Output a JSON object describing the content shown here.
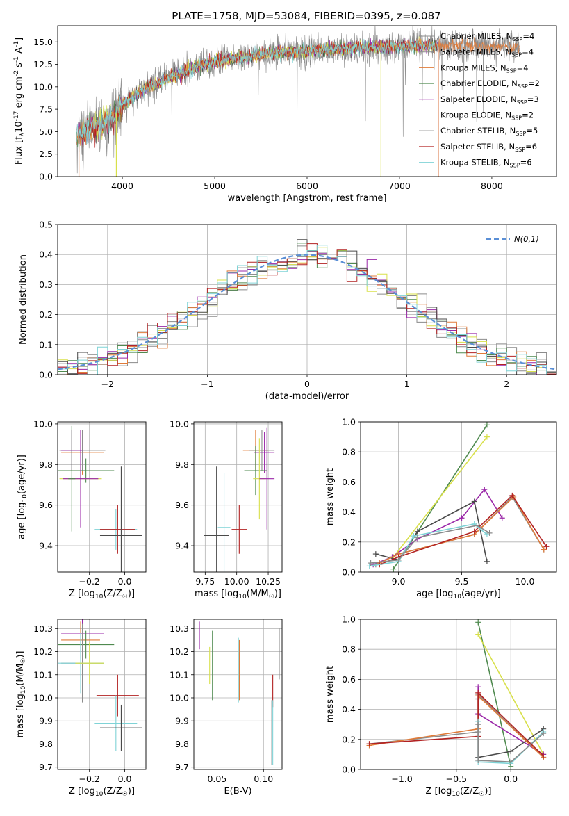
{
  "figure_title": "PLATE=1758, MJD=53084, FIBERID=0395, z=0.087",
  "colors": [
    "#8c8c8c",
    "#8a8a8a",
    "#e07b39",
    "#4f8a4f",
    "#9a27a8",
    "#d8e04a",
    "#4a4a4a",
    "#b22222",
    "#7fd3d6"
  ],
  "legend_labels": [
    "Chabrier MILES, N$_{SSP}$=4",
    "Salpeter MILES, N$_{SSP}$=4",
    "Kroupa MILES, N$_{SSP}$=4",
    "Chabrier ELODIE, N$_{SSP}$=2",
    "Salpeter ELODIE, N$_{SSP}$=3",
    "Kroupa ELODIE, N$_{SSP}$=2",
    "Chabrier STELIB, N$_{SSP}$=5",
    "Salpeter STELIB, N$_{SSP}$=6",
    "Kroupa STELIB, N$_{SSP}$=6"
  ],
  "chart_data": [
    {
      "id": "spectrum",
      "type": "line",
      "xlabel": "wavelength [Angstrom, rest frame]",
      "ylabel": "Flux [f$_\\lambda$10$^{-17}$ erg cm$^{-2}$ s$^{-1}$ A$^{-1}$]",
      "xlim": [
        3300,
        8700
      ],
      "ylim": [
        0,
        16.8
      ],
      "xticks": [
        4000,
        5000,
        6000,
        7000,
        8000
      ],
      "yticks": [
        0.0,
        2.5,
        5.0,
        7.5,
        10.0,
        12.5,
        15.0
      ],
      "data_range": [
        3500,
        8300
      ],
      "continuum": [
        [
          3500,
          4.5
        ],
        [
          3700,
          5.5
        ],
        [
          3900,
          6.5
        ],
        [
          4000,
          8.0
        ],
        [
          4200,
          9.5
        ],
        [
          4500,
          11.0
        ],
        [
          4800,
          12.2
        ],
        [
          5000,
          12.8
        ],
        [
          5300,
          13.3
        ],
        [
          5600,
          13.7
        ],
        [
          6000,
          14.0
        ],
        [
          6500,
          14.3
        ],
        [
          7000,
          14.5
        ],
        [
          7500,
          14.6
        ],
        [
          8000,
          14.5
        ],
        [
          8300,
          14.4
        ]
      ],
      "grid": false,
      "legend_placement": "right"
    },
    {
      "id": "residuals",
      "type": "histogram",
      "xlabel": "(data-model)/error",
      "ylabel": "Normed distribution",
      "xlim": [
        -2.5,
        2.5
      ],
      "ylim": [
        0,
        0.5
      ],
      "xticks": [
        -2,
        -1,
        0,
        1,
        2
      ],
      "yticks": [
        0.0,
        0.1,
        0.2,
        0.3,
        0.4,
        0.5
      ],
      "bin_width": 0.1,
      "normal_curve_label": "$\\mathcal{N}(0,1)$",
      "normal_curve_color": "#5a8fd6",
      "grid": true,
      "legend_placement": "top-right"
    },
    {
      "id": "age_vs_Z",
      "type": "errorbar",
      "xlabel": "Z [log$_{10}$(Z/Z$_\\odot$)]",
      "ylabel": "age  [log$_{10}$(age/yr)]",
      "xlim": [
        -0.38,
        0.12
      ],
      "ylim": [
        9.27,
        10.01
      ],
      "xticks": [
        -0.2,
        0.0
      ],
      "yticks": [
        9.4,
        9.6,
        9.8,
        10.0
      ],
      "points": [
        {
          "x": -0.24,
          "xerr": 0.12,
          "y": 9.86,
          "yerr": 0.11,
          "c": 2
        },
        {
          "x": -0.24,
          "xerr": 0.13,
          "y": 9.87,
          "yerr": 0.1,
          "c": 0
        },
        {
          "x": -0.3,
          "xerr": 0.06,
          "y": 9.87,
          "yerr": 0.1,
          "c": 4
        },
        {
          "x": -0.22,
          "xerr": 0.16,
          "y": 9.77,
          "yerr": 0.06,
          "c": 3
        },
        {
          "x": -0.25,
          "xerr": 0.12,
          "y": 9.73,
          "yerr": 0.07,
          "c": 5
        },
        {
          "x": -0.25,
          "xerr": 0.1,
          "y": 9.73,
          "yerr": 0.24,
          "c": 4
        },
        {
          "x": -0.3,
          "xerr": 0.02,
          "y": 9.73,
          "yerr": 0.26,
          "c": 3
        },
        {
          "x": -0.05,
          "xerr": 0.12,
          "y": 9.48,
          "yerr": 0.1,
          "c": 8
        },
        {
          "x": -0.04,
          "xerr": 0.1,
          "y": 9.48,
          "yerr": 0.12,
          "c": 7
        },
        {
          "x": -0.02,
          "xerr": 0.12,
          "y": 9.45,
          "yerr": 0.34,
          "c": 6
        }
      ]
    },
    {
      "id": "age_vs_mass",
      "type": "errorbar",
      "xlabel": "mass [log$_{10}$(M/M$_\\odot$)]",
      "ylabel": "",
      "xlim": [
        9.66,
        10.36
      ],
      "ylim": [
        9.27,
        10.01
      ],
      "xticks": [
        9.75,
        10.0,
        10.25
      ],
      "yticks": [
        9.4,
        9.6,
        9.8,
        10.0
      ],
      "points": [
        {
          "x": 10.15,
          "xerr": 0.1,
          "y": 9.87,
          "yerr": 0.1,
          "c": 2
        },
        {
          "x": 10.2,
          "xerr": 0.1,
          "y": 9.87,
          "yerr": 0.1,
          "c": 0
        },
        {
          "x": 10.22,
          "xerr": 0.08,
          "y": 9.86,
          "yerr": 0.1,
          "c": 4
        },
        {
          "x": 10.15,
          "xerr": 0.09,
          "y": 9.77,
          "yerr": 0.12,
          "c": 3
        },
        {
          "x": 10.18,
          "xerr": 0.05,
          "y": 9.73,
          "yerr": 0.2,
          "c": 5
        },
        {
          "x": 10.24,
          "xerr": 0.06,
          "y": 9.73,
          "yerr": 0.25,
          "c": 4
        },
        {
          "x": 9.9,
          "xerr": 0.05,
          "y": 9.49,
          "yerr": 0.27,
          "c": 8
        },
        {
          "x": 10.02,
          "xerr": 0.06,
          "y": 9.48,
          "yerr": 0.12,
          "c": 7
        },
        {
          "x": 9.84,
          "xerr": 0.1,
          "y": 9.45,
          "yerr": 0.34,
          "c": 6
        }
      ]
    },
    {
      "id": "weight_vs_age",
      "type": "line",
      "xlabel": "age  [log$_{10}$(age/yr)]",
      "ylabel": "mass weight",
      "xlim": [
        8.7,
        10.25
      ],
      "ylim": [
        0.0,
        1.0
      ],
      "xticks": [
        9.0,
        9.5,
        10.0
      ],
      "yticks": [
        0.0,
        0.2,
        0.4,
        0.6,
        0.8,
        1.0
      ],
      "grid": true,
      "series": [
        {
          "c": 3,
          "x": [
            8.96,
            9.7
          ],
          "y": [
            0.02,
            0.98
          ]
        },
        {
          "c": 5,
          "x": [
            8.96,
            9.7
          ],
          "y": [
            0.1,
            0.9
          ]
        },
        {
          "c": 4,
          "x": [
            8.8,
            8.95,
            9.15,
            9.5,
            9.68,
            9.82
          ],
          "y": [
            0.05,
            0.1,
            0.22,
            0.36,
            0.55,
            0.36
          ]
        },
        {
          "c": 6,
          "x": [
            8.82,
            9.0,
            9.15,
            9.6,
            9.7
          ],
          "y": [
            0.12,
            0.08,
            0.27,
            0.47,
            0.07
          ]
        },
        {
          "c": 0,
          "x": [
            8.82,
            9.0,
            9.6,
            9.9,
            10.15
          ],
          "y": [
            0.05,
            0.12,
            0.25,
            0.5,
            0.15
          ]
        },
        {
          "c": 2,
          "x": [
            8.85,
            9.0,
            9.6,
            9.91,
            10.15
          ],
          "y": [
            0.06,
            0.12,
            0.25,
            0.5,
            0.15
          ]
        },
        {
          "c": 7,
          "x": [
            8.85,
            9.0,
            9.6,
            9.9,
            10.17
          ],
          "y": [
            0.05,
            0.1,
            0.27,
            0.51,
            0.17
          ]
        },
        {
          "c": 8,
          "x": [
            8.77,
            9.0,
            9.12,
            9.6,
            9.7
          ],
          "y": [
            0.04,
            0.07,
            0.24,
            0.32,
            0.25
          ]
        },
        {
          "c": 1,
          "x": [
            8.78,
            9.0,
            9.15,
            9.62,
            9.72
          ],
          "y": [
            0.06,
            0.08,
            0.23,
            0.31,
            0.26
          ]
        }
      ]
    },
    {
      "id": "mass_vs_Z",
      "type": "errorbar",
      "xlabel": "Z [log$_{10}$(Z/Z$_\\odot$)]",
      "ylabel": "mass [log$_{10}$(M/M$_\\odot$)]",
      "xlim": [
        -0.38,
        0.12
      ],
      "ylim": [
        9.69,
        10.34
      ],
      "xticks": [
        -0.2,
        0.0
      ],
      "yticks": [
        9.7,
        9.8,
        9.9,
        10.0,
        10.1,
        10.2,
        10.3
      ],
      "points": [
        {
          "x": -0.24,
          "xerr": 0.12,
          "y": 10.28,
          "yerr": 0.06,
          "c": 4
        },
        {
          "x": -0.25,
          "xerr": 0.11,
          "y": 10.25,
          "yerr": 0.08,
          "c": 2
        },
        {
          "x": -0.22,
          "xerr": 0.16,
          "y": 10.23,
          "yerr": 0.06,
          "c": 3
        },
        {
          "x": -0.24,
          "xerr": 0.12,
          "y": 10.15,
          "yerr": 0.17,
          "c": 0
        },
        {
          "x": -0.25,
          "xerr": 0.13,
          "y": 10.15,
          "yerr": 0.13,
          "c": 8
        },
        {
          "x": -0.2,
          "xerr": 0.08,
          "y": 10.15,
          "yerr": 0.09,
          "c": 5
        },
        {
          "x": -0.04,
          "xerr": 0.12,
          "y": 10.01,
          "yerr": 0.09,
          "c": 7
        },
        {
          "x": -0.05,
          "xerr": 0.12,
          "y": 9.89,
          "yerr": 0.12,
          "c": 8
        },
        {
          "x": -0.02,
          "xerr": 0.12,
          "y": 9.87,
          "yerr": 0.1,
          "c": 6
        }
      ]
    },
    {
      "id": "mass_vs_EBV",
      "type": "errorbar",
      "xlabel": "E(B-V)",
      "ylabel": "",
      "xlim": [
        0.025,
        0.12
      ],
      "ylim": [
        9.69,
        10.34
      ],
      "xticks": [
        0.05,
        0.1
      ],
      "yticks": [
        9.7,
        9.8,
        9.9,
        10.0,
        10.1,
        10.2,
        10.3
      ],
      "points": [
        {
          "x": 0.031,
          "xerr": 0,
          "y": 10.27,
          "yerr": 0.06,
          "c": 4
        },
        {
          "x": 0.042,
          "xerr": 0,
          "y": 10.14,
          "yerr": 0.08,
          "c": 5
        },
        {
          "x": 0.045,
          "xerr": 0,
          "y": 10.14,
          "yerr": 0.15,
          "c": 3
        },
        {
          "x": 0.073,
          "xerr": 0,
          "y": 10.12,
          "yerr": 0.14,
          "c": 8
        },
        {
          "x": 0.074,
          "xerr": 0,
          "y": 10.12,
          "yerr": 0.13,
          "c": 2
        },
        {
          "x": 0.11,
          "xerr": 0,
          "y": 10.03,
          "yerr": 0.07,
          "c": 7
        },
        {
          "x": 0.109,
          "xerr": 0,
          "y": 9.85,
          "yerr": 0.14,
          "c": 6
        },
        {
          "x": 0.11,
          "xerr": 0,
          "y": 9.85,
          "yerr": 0.14,
          "c": 8
        },
        {
          "x": 0.117,
          "xerr": 0,
          "y": 10.19,
          "yerr": 0.11,
          "c": 0
        }
      ]
    },
    {
      "id": "weight_vs_Z",
      "type": "line",
      "xlabel": "Z [log$_{10}$(Z/Z$_\\odot$)]",
      "ylabel": "mass weight",
      "xlim": [
        -1.38,
        0.42
      ],
      "ylim": [
        0.0,
        1.0
      ],
      "xticks": [
        -1.0,
        -0.5,
        0.0
      ],
      "yticks": [
        0.0,
        0.2,
        0.4,
        0.6,
        0.8,
        1.0
      ],
      "grid": true,
      "series": [
        {
          "c": 3,
          "x": [
            -0.3,
            0.0
          ],
          "y": [
            0.98,
            0.02
          ]
        },
        {
          "c": 5,
          "x": [
            -0.3,
            0.3
          ],
          "y": [
            0.9,
            0.1
          ]
        },
        {
          "c": 4,
          "x": [
            -0.3,
            -0.3,
            0.3
          ],
          "y": [
            0.55,
            0.37,
            0.1
          ]
        },
        {
          "c": 6,
          "x": [
            -0.3,
            -0.3,
            0.0,
            0.3
          ],
          "y": [
            0.47,
            0.08,
            0.12,
            0.27
          ]
        },
        {
          "c": 0,
          "x": [
            -1.3,
            -0.3,
            -0.3,
            0.3
          ],
          "y": [
            0.17,
            0.25,
            0.5,
            0.08
          ]
        },
        {
          "c": 2,
          "x": [
            -1.3,
            -0.3,
            -0.3,
            0.3
          ],
          "y": [
            0.16,
            0.27,
            0.49,
            0.08
          ]
        },
        {
          "c": 7,
          "x": [
            -1.3,
            -0.3,
            -0.3,
            0.3
          ],
          "y": [
            0.17,
            0.22,
            0.51,
            0.09
          ]
        },
        {
          "c": 8,
          "x": [
            -0.3,
            -0.3,
            0.0,
            0.3
          ],
          "y": [
            0.32,
            0.05,
            0.04,
            0.25
          ]
        },
        {
          "c": 1,
          "x": [
            -0.3,
            -0.3,
            0.0,
            0.3
          ],
          "y": [
            0.3,
            0.06,
            0.05,
            0.24
          ]
        }
      ]
    }
  ]
}
